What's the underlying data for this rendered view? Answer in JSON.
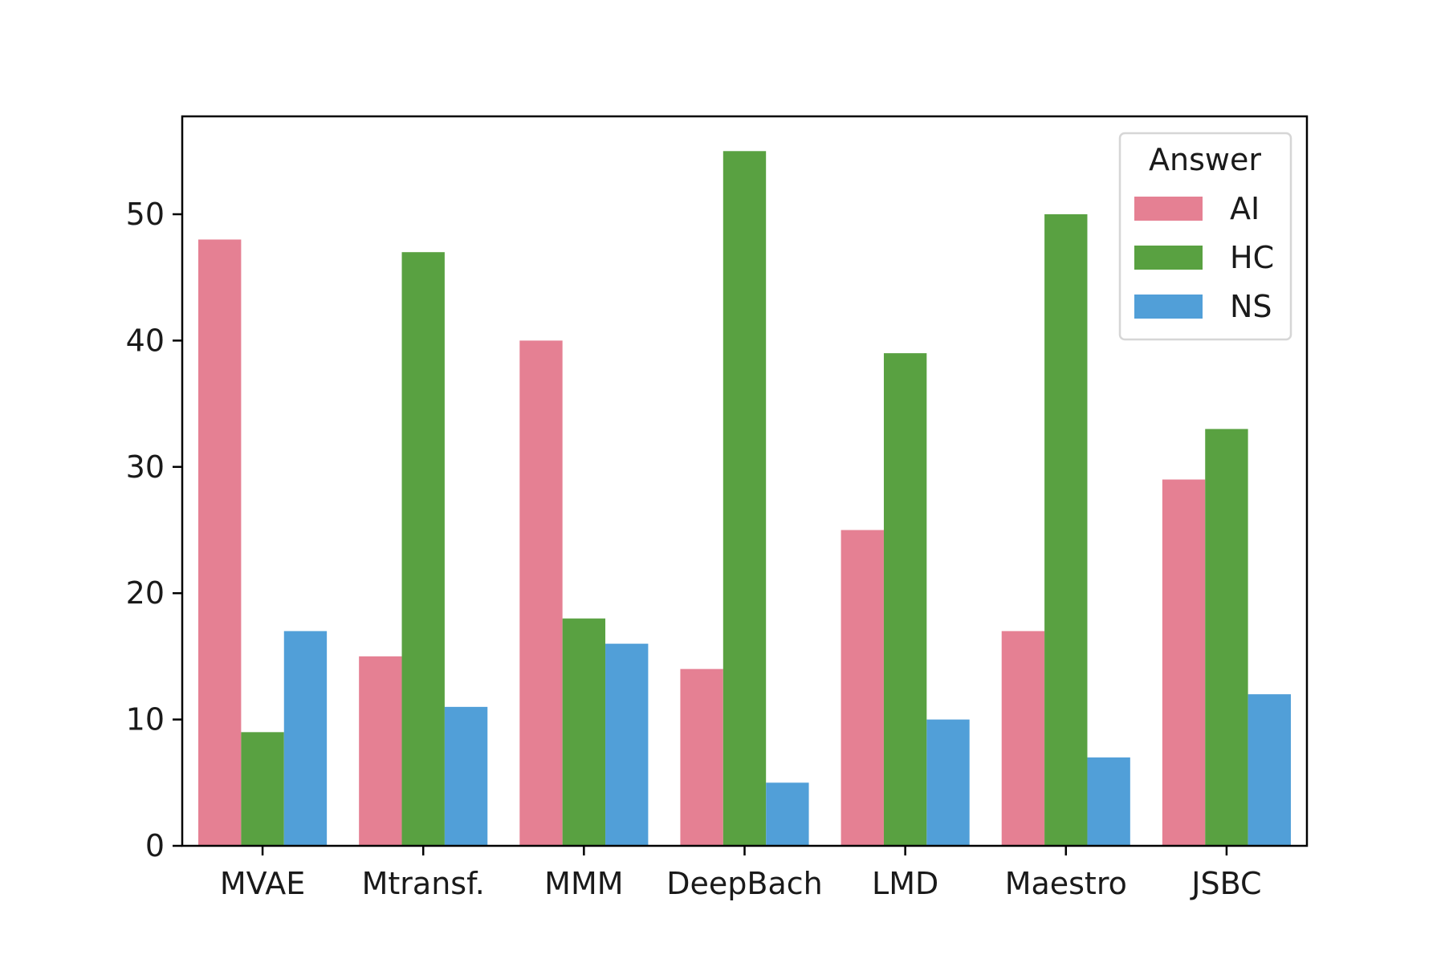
{
  "chart_data": {
    "type": "bar",
    "title": "",
    "xlabel": "",
    "ylabel": "",
    "categories": [
      "MVAE",
      "Mtransf.",
      "MMM",
      "DeepBach",
      "LMD",
      "Maestro",
      "JSBC"
    ],
    "series": [
      {
        "name": "AI",
        "color": "#e58093",
        "values": [
          48,
          15,
          40,
          14,
          25,
          17,
          29
        ]
      },
      {
        "name": "HC",
        "color": "#59a141",
        "values": [
          9,
          47,
          18,
          55,
          39,
          50,
          33
        ]
      },
      {
        "name": "NS",
        "color": "#519fd8",
        "values": [
          17,
          11,
          16,
          5,
          10,
          7,
          12
        ]
      }
    ],
    "ylim": [
      0,
      57.75
    ],
    "yticks": [
      0,
      10,
      20,
      30,
      40,
      50
    ],
    "grid": false,
    "legend": {
      "title": "Answer",
      "placement": "top-right"
    }
  }
}
